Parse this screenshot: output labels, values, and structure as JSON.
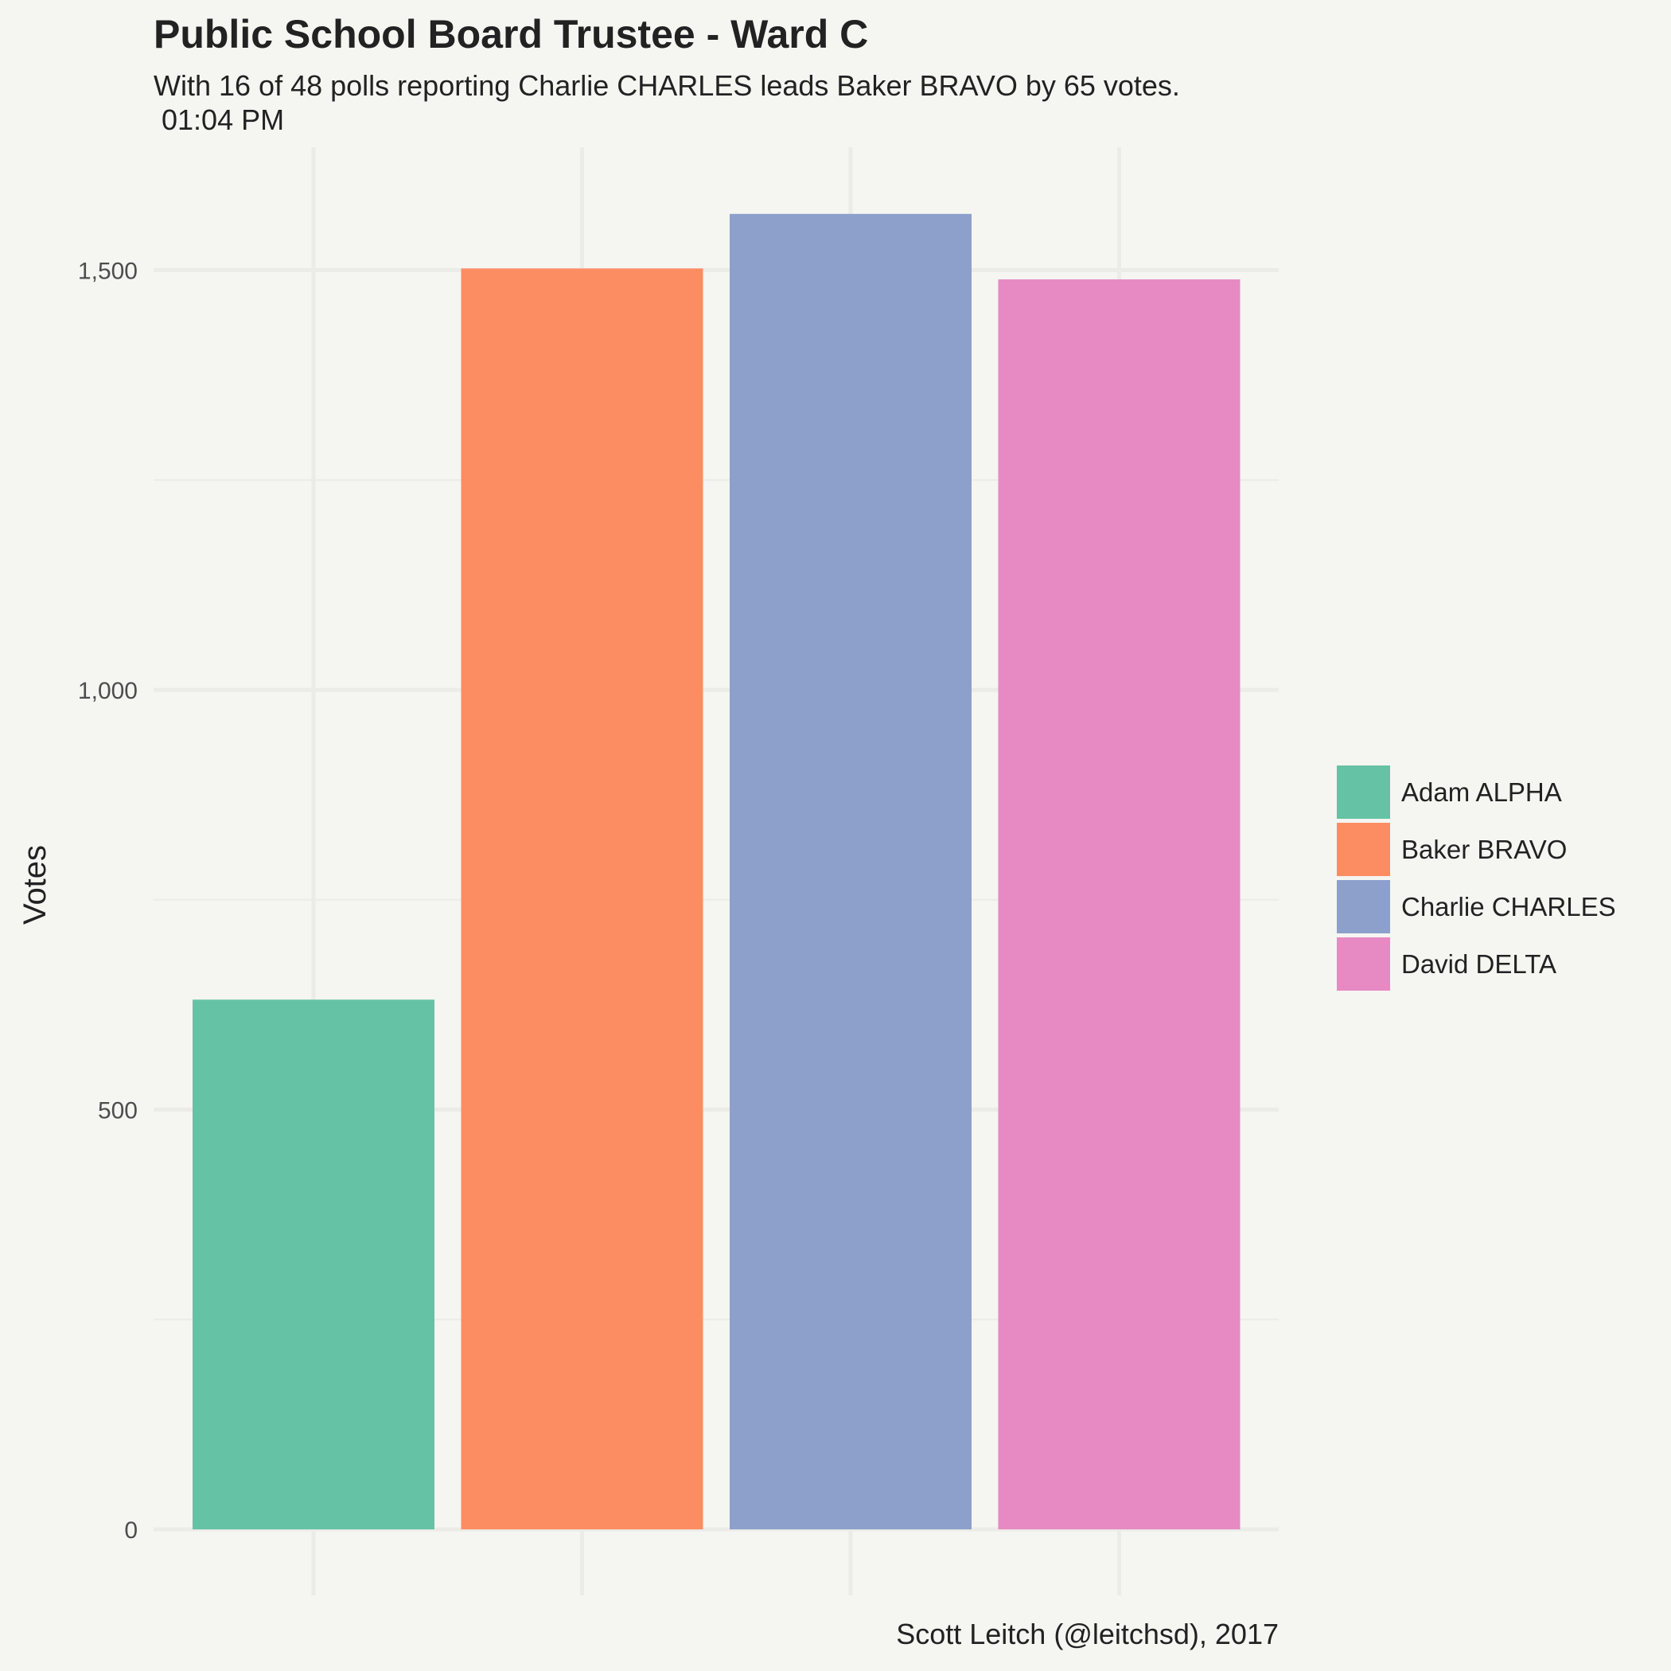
{
  "chart_data": {
    "type": "bar",
    "title": "Public School Board Trustee - Ward C",
    "subtitle_lines": [
      "With 16 of 48 polls reporting Charlie CHARLES leads Baker BRAVO by 65 votes.",
      " 01:04 PM"
    ],
    "caption": "Scott Leitch (@leitchsd), 2017",
    "xlabel": "",
    "ylabel": "Votes",
    "ylim": [
      0,
      1600
    ],
    "y_ticks": [
      0,
      500,
      1000,
      1500
    ],
    "y_tick_labels": [
      "0",
      "500",
      "1,000",
      "1,500"
    ],
    "categories": [
      "Adam ALPHA",
      "Baker BRAVO",
      "Charlie CHARLES",
      "David DELTA"
    ],
    "values": [
      631,
      1502,
      1567,
      1489
    ],
    "colors": [
      "#66c2a5",
      "#fc8d62",
      "#8da0cb",
      "#e78ac3"
    ],
    "x_tick_labels_visible": false,
    "grid": true,
    "legend_position": "right"
  }
}
